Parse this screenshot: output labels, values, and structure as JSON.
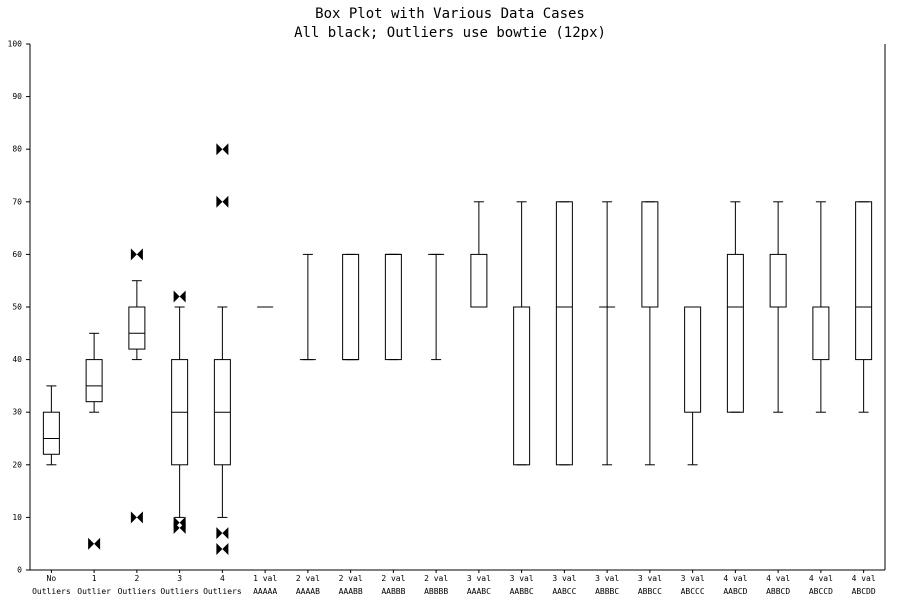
{
  "chart_data": {
    "type": "box",
    "title": "Box Plot with Various Data Cases",
    "subtitle": "All black; Outliers use bowtie (12px)",
    "color": "#000000",
    "outlier_marker": "bowtie",
    "categories": [
      [
        "No",
        "Outliers"
      ],
      [
        "1",
        "Outlier"
      ],
      [
        "2",
        "Outliers"
      ],
      [
        "3",
        "Outliers"
      ],
      [
        "4",
        "Outliers"
      ],
      [
        "1 val",
        "AAAAA"
      ],
      [
        "2 val",
        "AAAAB"
      ],
      [
        "2 val",
        "AAABB"
      ],
      [
        "2 val",
        "AABBB"
      ],
      [
        "2 val",
        "ABBBB"
      ],
      [
        "3 val",
        "AAABC"
      ],
      [
        "3 val",
        "AABBC"
      ],
      [
        "3 val",
        "AABCC"
      ],
      [
        "3 val",
        "ABBBC"
      ],
      [
        "3 val",
        "ABBCC"
      ],
      [
        "3 val",
        "ABCCC"
      ],
      [
        "4 val",
        "AABCD"
      ],
      [
        "4 val",
        "ABBCD"
      ],
      [
        "4 val",
        "ABCCD"
      ],
      [
        "4 val",
        "ABCDD"
      ]
    ],
    "boxes": [
      {
        "min": 20,
        "q1": 22,
        "median": 25,
        "q3": 30,
        "max": 35,
        "outliers": []
      },
      {
        "min": 30,
        "q1": 32,
        "median": 35,
        "q3": 40,
        "max": 45,
        "outliers": [
          5
        ]
      },
      {
        "min": 40,
        "q1": 42,
        "median": 45,
        "q3": 50,
        "max": 55,
        "outliers": [
          10,
          60
        ]
      },
      {
        "min": 10,
        "q1": 20,
        "median": 30,
        "q3": 40,
        "max": 50,
        "outliers": [
          8,
          9,
          52
        ]
      },
      {
        "min": 10,
        "q1": 20,
        "median": 30,
        "q3": 40,
        "max": 50,
        "outliers": [
          4,
          7,
          70,
          80
        ]
      },
      {
        "min": 50,
        "q1": 50,
        "median": 50,
        "q3": 50,
        "max": 50,
        "outliers": []
      },
      {
        "min": 40,
        "q1": 40,
        "median": 40,
        "q3": 40,
        "max": 60,
        "outliers": []
      },
      {
        "min": 40,
        "q1": 40,
        "median": 40,
        "q3": 60,
        "max": 60,
        "outliers": []
      },
      {
        "min": 40,
        "q1": 40,
        "median": 60,
        "q3": 60,
        "max": 60,
        "outliers": []
      },
      {
        "min": 40,
        "q1": 60,
        "median": 60,
        "q3": 60,
        "max": 60,
        "outliers": []
      },
      {
        "min": 50,
        "q1": 50,
        "median": 50,
        "q3": 60,
        "max": 70,
        "outliers": []
      },
      {
        "min": 20,
        "q1": 20,
        "median": 50,
        "q3": 50,
        "max": 70,
        "outliers": []
      },
      {
        "min": 20,
        "q1": 20,
        "median": 50,
        "q3": 70,
        "max": 70,
        "outliers": []
      },
      {
        "min": 20,
        "q1": 50,
        "median": 50,
        "q3": 50,
        "max": 70,
        "outliers": []
      },
      {
        "min": 20,
        "q1": 50,
        "median": 50,
        "q3": 70,
        "max": 70,
        "outliers": []
      },
      {
        "min": 20,
        "q1": 30,
        "median": 50,
        "q3": 50,
        "max": 50,
        "outliers": []
      },
      {
        "min": 30,
        "q1": 30,
        "median": 50,
        "q3": 60,
        "max": 70,
        "outliers": []
      },
      {
        "min": 30,
        "q1": 50,
        "median": 50,
        "q3": 60,
        "max": 70,
        "outliers": []
      },
      {
        "min": 30,
        "q1": 40,
        "median": 50,
        "q3": 50,
        "max": 70,
        "outliers": []
      },
      {
        "min": 30,
        "q1": 40,
        "median": 50,
        "q3": 70,
        "max": 70,
        "outliers": []
      }
    ],
    "ylim": [
      0,
      100
    ],
    "yticks": [
      0,
      10,
      20,
      30,
      40,
      50,
      60,
      70,
      80,
      90,
      100
    ]
  }
}
